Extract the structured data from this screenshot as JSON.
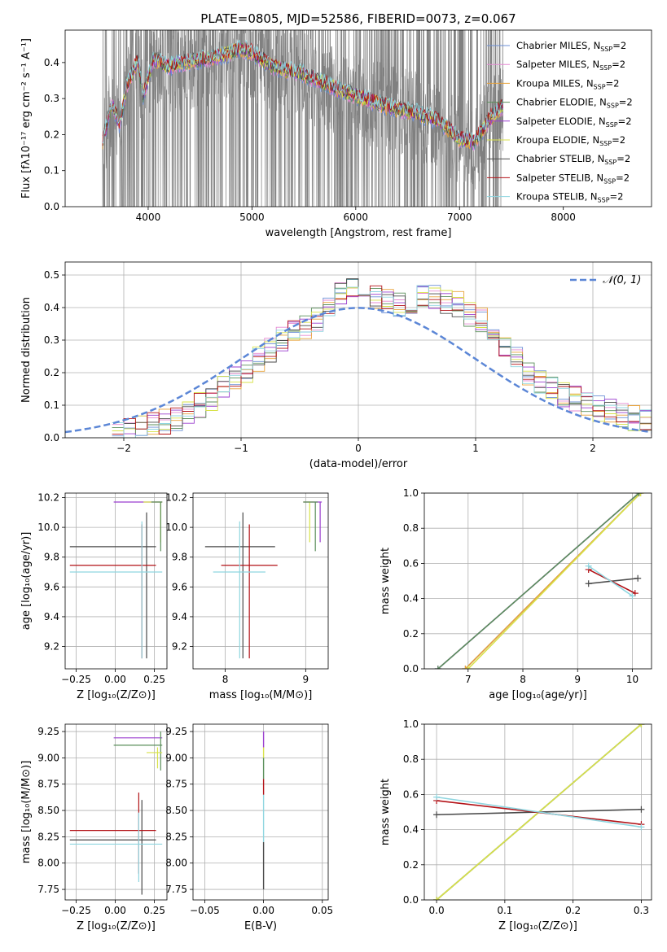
{
  "chart_data": [
    {
      "id": "spectrum",
      "type": "line",
      "title": "PLATE=0805, MJD=52586, FIBERID=0073, z=0.067",
      "xlabel": "wavelength [Angstrom, rest frame]",
      "ylabel": "Flux [fλ10⁻¹⁷ erg cm⁻² s⁻¹ A⁻¹]",
      "xlim": [
        3200,
        8850
      ],
      "ylim": [
        0,
        0.49
      ],
      "xticks": [
        4000,
        5000,
        6000,
        7000,
        8000
      ],
      "yticks": [
        0.0,
        0.1,
        0.2,
        0.3,
        0.4
      ],
      "legend_position": "right",
      "data_color": "#808080",
      "legend": [
        {
          "base": "Chabrier MILES, N",
          "sub": "SSP",
          "tail": "=2",
          "color": "#6b8fd6"
        },
        {
          "base": "Salpeter MILES, N",
          "sub": "SSP",
          "tail": "=2",
          "color": "#e58bd3"
        },
        {
          "base": "Kroupa MILES, N",
          "sub": "SSP",
          "tail": "=2",
          "color": "#e8a23a"
        },
        {
          "base": "Chabrier ELODIE, N",
          "sub": "SSP",
          "tail": "=2",
          "color": "#5b8f5b"
        },
        {
          "base": "Salpeter ELODIE, N",
          "sub": "SSP",
          "tail": "=2",
          "color": "#9b3fcf"
        },
        {
          "base": "Kroupa ELODIE, N",
          "sub": "SSP",
          "tail": "=2",
          "color": "#d8e24a"
        },
        {
          "base": "Chabrier STELIB, N",
          "sub": "SSP",
          "tail": "=2",
          "color": "#4a4a4a"
        },
        {
          "base": "Salpeter STELIB, N",
          "sub": "SSP",
          "tail": "=2",
          "color": "#b31217"
        },
        {
          "base": "Kroupa STELIB, N",
          "sub": "SSP",
          "tail": "=2",
          "color": "#8fd6e0"
        }
      ],
      "model_curve_knots": {
        "x": [
          3560,
          3650,
          3720,
          3800,
          3900,
          3950,
          4050,
          4200,
          4300,
          4500,
          4700,
          4900,
          5000,
          5200,
          5500,
          5800,
          6000,
          6300,
          6600,
          6800,
          7000,
          7150,
          7300,
          7420
        ],
        "y": [
          0.17,
          0.28,
          0.22,
          0.33,
          0.4,
          0.3,
          0.4,
          0.38,
          0.39,
          0.4,
          0.41,
          0.43,
          0.42,
          0.38,
          0.36,
          0.32,
          0.3,
          0.27,
          0.25,
          0.23,
          0.18,
          0.17,
          0.24,
          0.27
        ]
      }
    },
    {
      "id": "residual-histogram",
      "type": "histogram",
      "xlabel": "(data-model)/error",
      "ylabel": "Normed distribution",
      "xlim": [
        -2.5,
        2.5
      ],
      "ylim": [
        0,
        0.54
      ],
      "xticks": [
        -2,
        -1,
        0,
        1,
        2
      ],
      "xtick_labels": [
        "−2",
        "−1",
        "0",
        "1",
        "2"
      ],
      "yticks": [
        0.0,
        0.1,
        0.2,
        0.3,
        0.4,
        0.5
      ],
      "legend": {
        "label": "𝒩(0, 1)",
        "color": "#5b86d6",
        "position": "top-right"
      },
      "bin_width": 0.1,
      "bin_start": -2.1,
      "bins_approx": [
        0.01,
        0.02,
        0.03,
        0.04,
        0.05,
        0.06,
        0.08,
        0.1,
        0.12,
        0.15,
        0.18,
        0.21,
        0.24,
        0.27,
        0.3,
        0.32,
        0.34,
        0.36,
        0.41,
        0.45,
        0.46,
        0.44,
        0.43,
        0.42,
        0.41,
        0.42,
        0.44,
        0.43,
        0.42,
        0.41,
        0.38,
        0.36,
        0.33,
        0.28,
        0.24,
        0.2,
        0.17,
        0.15,
        0.13,
        0.12,
        0.1,
        0.09,
        0.08,
        0.07,
        0.06,
        0.05,
        0.04
      ]
    },
    {
      "id": "age-vs-Z",
      "type": "scatter",
      "xlabel": "Z [log₁₀(Z/Z⊙)]",
      "ylabel": "age  [log₁₀(age/yr)]",
      "xlim": [
        -0.32,
        0.33
      ],
      "ylim": [
        9.05,
        10.23
      ],
      "xticks": [
        -0.25,
        0.0,
        0.25
      ],
      "xtick_labels": [
        "−0.25",
        "0.00",
        "0.25"
      ],
      "yticks": [
        9.2,
        9.4,
        9.6,
        9.8,
        10.0,
        10.2
      ],
      "points": [
        {
          "x": 0.19,
          "y": 10.17,
          "xlow": -0.01,
          "xhigh": 0.3,
          "ylow": 10.17,
          "yhigh": 10.17,
          "color": "#9b3fcf"
        },
        {
          "x": 0.29,
          "y": 10.17,
          "xlow": 0.18,
          "xhigh": 0.3,
          "ylow": 9.9,
          "yhigh": 10.17,
          "color": "#d8e24a"
        },
        {
          "x": 0.29,
          "y": 10.17,
          "xlow": 0.23,
          "xhigh": 0.3,
          "ylow": 9.84,
          "yhigh": 10.17,
          "color": "#5b8f5b"
        },
        {
          "x": 0.2,
          "y": 9.87,
          "xlow": -0.29,
          "xhigh": 0.26,
          "ylow": 9.12,
          "yhigh": 10.1,
          "color": "#4a4a4a"
        },
        {
          "x": 0.17,
          "y": 9.745,
          "xlow": -0.29,
          "xhigh": 0.26,
          "ylow": 9.12,
          "yhigh": 10.02,
          "color": "#b31217"
        },
        {
          "x": 0.17,
          "y": 9.7,
          "xlow": -0.29,
          "xhigh": 0.3,
          "ylow": 9.12,
          "yhigh": 10.04,
          "color": "#8fd6e0"
        }
      ]
    },
    {
      "id": "age-vs-mass",
      "type": "scatter",
      "xlabel": "mass [log₁₀(M/M⊙)]",
      "ylabel": "",
      "xlim": [
        7.6,
        9.28
      ],
      "ylim": [
        9.05,
        10.23
      ],
      "xticks": [
        8,
        9
      ],
      "yticks": [
        9.2,
        9.4,
        9.6,
        9.8,
        10.0,
        10.2
      ],
      "points": [
        {
          "x": 9.18,
          "y": 10.17,
          "xlow": 8.97,
          "xhigh": 9.2,
          "ylow": 9.9,
          "yhigh": 10.17,
          "color": "#9b3fcf"
        },
        {
          "x": 9.05,
          "y": 10.17,
          "xlow": 8.97,
          "xhigh": 9.1,
          "ylow": 9.9,
          "yhigh": 10.17,
          "color": "#d8e24a"
        },
        {
          "x": 9.12,
          "y": 10.17,
          "xlow": 8.97,
          "xhigh": 9.15,
          "ylow": 9.84,
          "yhigh": 10.17,
          "color": "#5b8f5b"
        },
        {
          "x": 8.22,
          "y": 9.87,
          "xlow": 7.75,
          "xhigh": 8.62,
          "ylow": 9.12,
          "yhigh": 10.1,
          "color": "#4a4a4a"
        },
        {
          "x": 8.3,
          "y": 9.745,
          "xlow": 7.95,
          "xhigh": 8.65,
          "ylow": 9.12,
          "yhigh": 10.02,
          "color": "#b31217"
        },
        {
          "x": 8.18,
          "y": 9.7,
          "xlow": 7.85,
          "xhigh": 8.5,
          "ylow": 9.12,
          "yhigh": 10.04,
          "color": "#8fd6e0"
        }
      ]
    },
    {
      "id": "weight-vs-age",
      "type": "line",
      "xlabel": "age  [log₁₀(age/yr)]",
      "ylabel": "mass weight",
      "xlim": [
        6.2,
        10.35
      ],
      "ylim": [
        0,
        1.0
      ],
      "xticks": [
        7,
        8,
        9,
        10
      ],
      "yticks": [
        0.0,
        0.2,
        0.4,
        0.6,
        0.8,
        1.0
      ],
      "series": [
        {
          "x": [
            6.95,
            10.15
          ],
          "y": [
            0.0,
            1.0
          ],
          "color": "#6b8fd6"
        },
        {
          "x": [
            6.95,
            10.15
          ],
          "y": [
            0.0,
            1.0
          ],
          "color": "#e8a23a"
        },
        {
          "x": [
            7.0,
            10.15
          ],
          "y": [
            0.0,
            1.0
          ],
          "color": "#d8e24a"
        },
        {
          "x": [
            6.45,
            10.12
          ],
          "y": [
            0.0,
            1.0
          ],
          "color": "#9b3fcf"
        },
        {
          "x": [
            6.45,
            10.12
          ],
          "y": [
            0.0,
            1.0
          ],
          "color": "#5b8f5b"
        },
        {
          "x": [
            9.2,
            10.1
          ],
          "y": [
            0.485,
            0.515
          ],
          "color": "#4a4a4a"
        },
        {
          "x": [
            9.2,
            10.05
          ],
          "y": [
            0.565,
            0.43
          ],
          "color": "#b31217"
        },
        {
          "x": [
            9.2,
            10.0
          ],
          "y": [
            0.585,
            0.415
          ],
          "color": "#8fd6e0"
        }
      ]
    },
    {
      "id": "mass-vs-Z",
      "type": "scatter",
      "xlabel": "Z [log₁₀(Z/Z⊙)]",
      "ylabel": "mass [log₁₀(M/M⊙)]",
      "xlim": [
        -0.32,
        0.33
      ],
      "ylim": [
        7.65,
        9.32
      ],
      "xticks": [
        -0.25,
        0.0,
        0.25
      ],
      "xtick_labels": [
        "−0.25",
        "0.00",
        "0.25"
      ],
      "yticks": [
        7.75,
        8.0,
        8.25,
        8.5,
        8.75,
        9.0,
        9.25
      ],
      "points": [
        {
          "x": 0.29,
          "y": 9.19,
          "xlow": -0.01,
          "xhigh": 0.3,
          "ylow": 9.19,
          "yhigh": 9.19,
          "color": "#9b3fcf"
        },
        {
          "x": 0.29,
          "y": 9.12,
          "xlow": -0.01,
          "xhigh": 0.3,
          "ylow": 8.88,
          "yhigh": 9.25,
          "color": "#5b8f5b"
        },
        {
          "x": 0.27,
          "y": 9.05,
          "xlow": 0.2,
          "xhigh": 0.3,
          "ylow": 8.9,
          "yhigh": 9.1,
          "color": "#d8e24a"
        },
        {
          "x": 0.17,
          "y": 8.22,
          "xlow": -0.29,
          "xhigh": 0.26,
          "ylow": 7.7,
          "yhigh": 8.6,
          "color": "#4a4a4a"
        },
        {
          "x": 0.15,
          "y": 8.31,
          "xlow": -0.29,
          "xhigh": 0.26,
          "ylow": 7.9,
          "yhigh": 8.67,
          "color": "#b31217"
        },
        {
          "x": 0.15,
          "y": 8.18,
          "xlow": -0.29,
          "xhigh": 0.3,
          "ylow": 7.82,
          "yhigh": 8.48,
          "color": "#8fd6e0"
        }
      ]
    },
    {
      "id": "mass-vs-ebv",
      "type": "scatter",
      "xlabel": "E(B-V)",
      "ylabel": "",
      "xlim": [
        -0.06,
        0.055
      ],
      "ylim": [
        7.65,
        9.32
      ],
      "xticks": [
        -0.05,
        0.0,
        0.05
      ],
      "xtick_labels": [
        "−0.05",
        "0.00",
        "0.05"
      ],
      "yticks": [
        7.75,
        8.0,
        8.25,
        8.5,
        8.75,
        9.0,
        9.25
      ],
      "segments": [
        {
          "x": 0.0,
          "ylow": 7.75,
          "yhigh": 8.2,
          "color": "#4a4a4a"
        },
        {
          "x": 0.0,
          "ylow": 8.2,
          "yhigh": 8.65,
          "color": "#8fd6e0"
        },
        {
          "x": 0.0,
          "ylow": 8.65,
          "yhigh": 8.8,
          "color": "#b31217"
        },
        {
          "x": 0.0,
          "ylow": 8.8,
          "yhigh": 9.0,
          "color": "#5b8f5b"
        },
        {
          "x": 0.0,
          "ylow": 9.0,
          "yhigh": 9.1,
          "color": "#d8e24a"
        },
        {
          "x": 0.0,
          "ylow": 9.1,
          "yhigh": 9.25,
          "color": "#9b3fcf"
        }
      ]
    },
    {
      "id": "weight-vs-Z",
      "type": "line",
      "xlabel": "Z [log₁₀(Z/Z⊙)]",
      "ylabel": "mass weight",
      "xlim": [
        -0.018,
        0.315
      ],
      "ylim": [
        0,
        1.0
      ],
      "xticks": [
        0.0,
        0.1,
        0.2,
        0.3
      ],
      "yticks": [
        0.0,
        0.2,
        0.4,
        0.6,
        0.8,
        1.0
      ],
      "series": [
        {
          "x": [
            0.0,
            0.3
          ],
          "y": [
            0.0,
            1.0
          ],
          "color": "#6b8fd6"
        },
        {
          "x": [
            0.0,
            0.3
          ],
          "y": [
            0.0,
            1.0
          ],
          "color": "#e8a23a"
        },
        {
          "x": [
            0.0,
            0.3
          ],
          "y": [
            0.0,
            1.0
          ],
          "color": "#5b8f5b"
        },
        {
          "x": [
            0.0,
            0.3
          ],
          "y": [
            0.0,
            1.0
          ],
          "color": "#d8e24a"
        },
        {
          "x": [
            0.0,
            0.3
          ],
          "y": [
            0.485,
            0.515
          ],
          "color": "#4a4a4a"
        },
        {
          "x": [
            0.0,
            0.3
          ],
          "y": [
            0.565,
            0.43
          ],
          "color": "#b31217"
        },
        {
          "x": [
            0.0,
            0.3
          ],
          "y": [
            0.585,
            0.415
          ],
          "color": "#8fd6e0"
        }
      ]
    }
  ]
}
